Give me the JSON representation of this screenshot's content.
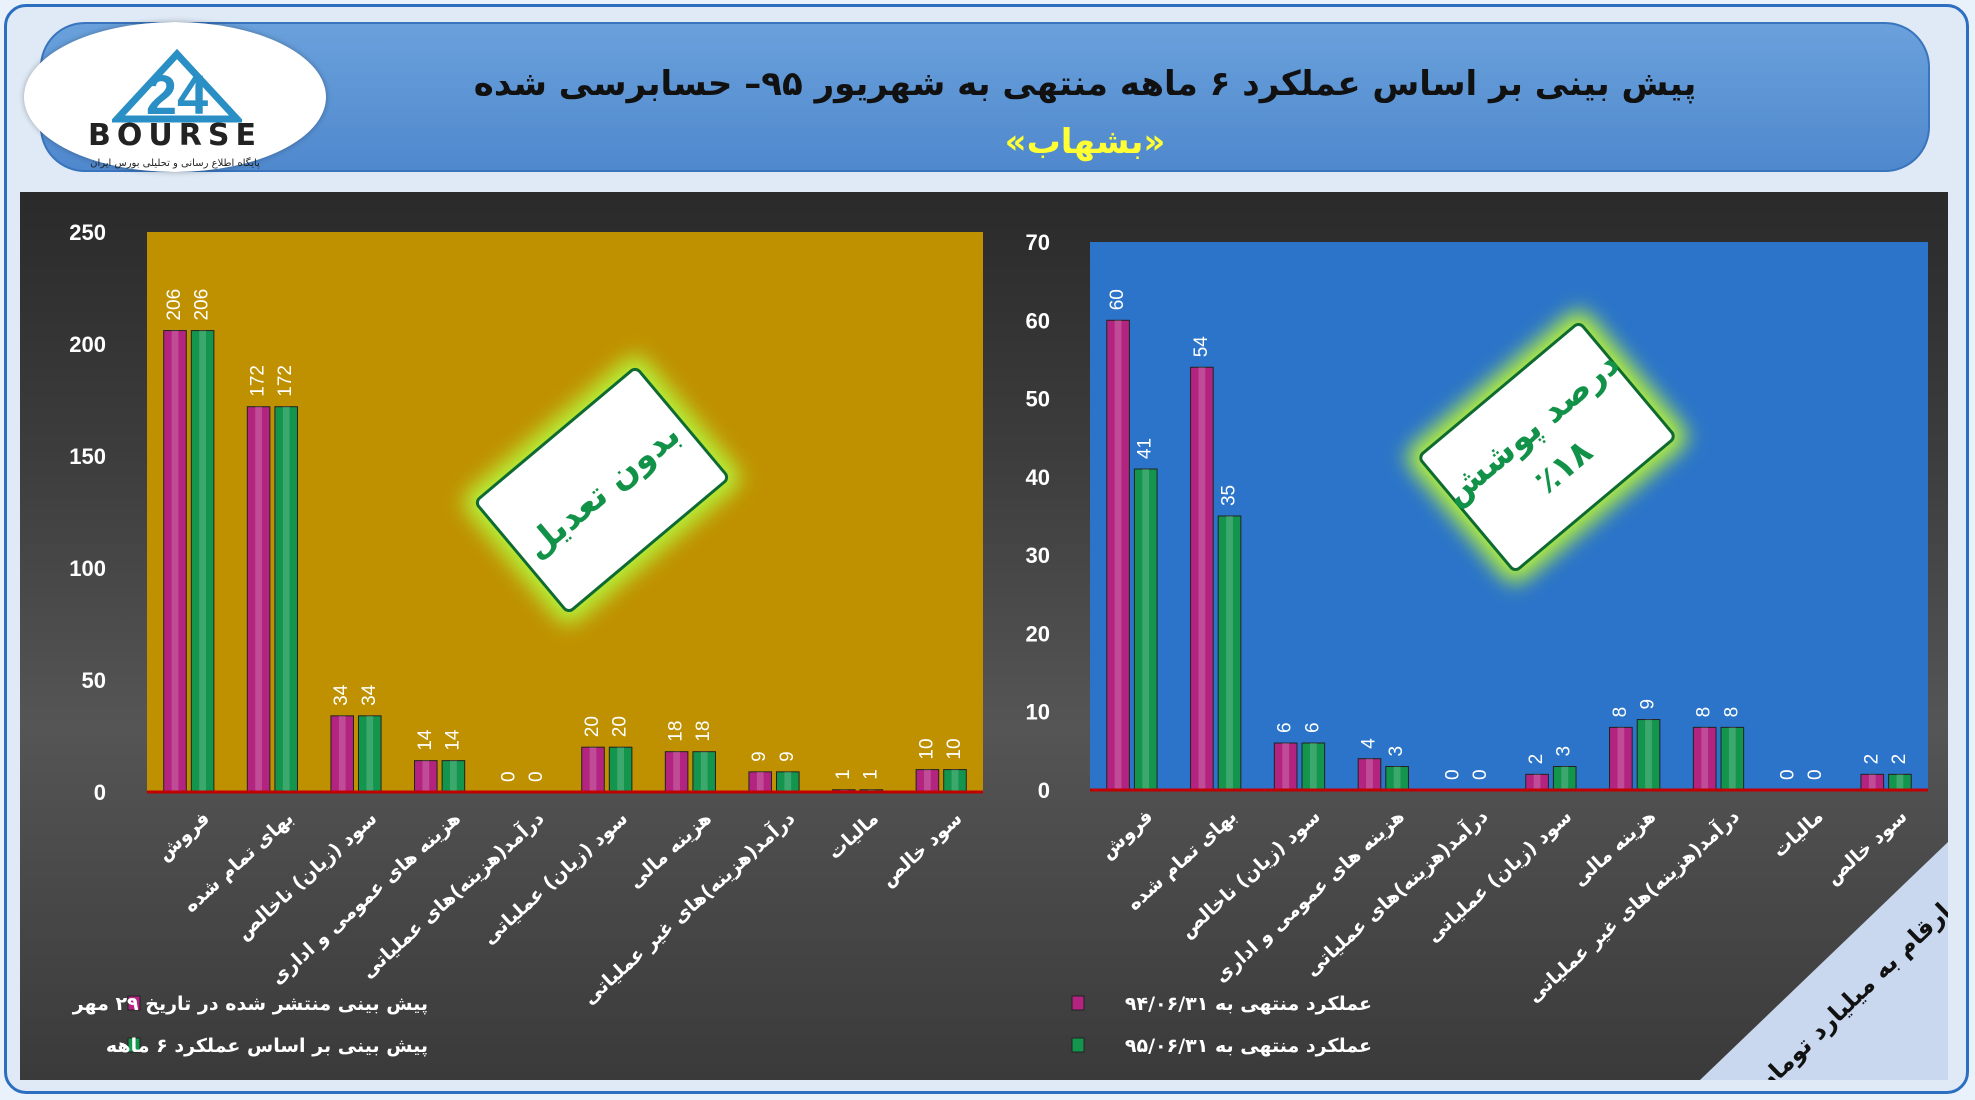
{
  "header": {
    "title": "پیش بینی بر اساس عملکرد ۶ ماهه منتهی به شهریور ۹۵– حسابرسی شده",
    "subtitle": "«بشهاب»"
  },
  "logo": {
    "name": "BOURSE",
    "number": "24",
    "tagline": "پایگاه اطلاع رسانی و تحلیلی بورس ایران"
  },
  "colors": {
    "series1": "#b2247f",
    "series2": "#13954d",
    "left_plot_bg": "#bf9100",
    "right_plot_bg": "#2b74c9",
    "baseline": "#c00000"
  },
  "chart_data": [
    {
      "type": "bar",
      "categories": [
        "فروش",
        "بهای تمام شده",
        "سود (زیان) ناخالص",
        "هزینه های عمومی و اداری",
        "درآمد(هزینه)های عملیاتی",
        "سود (زیان) عملیاتی",
        "هزینه مالی",
        "درآمد(هزینه)های غیر عملیاتی",
        "مالیات",
        "سود خالص"
      ],
      "series": [
        {
          "name": "پیش بینی منتشر شده در تاریخ ۲۹ مهر",
          "values": [
            206,
            172,
            34,
            14,
            0,
            20,
            18,
            9,
            1,
            10
          ]
        },
        {
          "name": "پیش بینی بر اساس عملکرد ۶ ماهه",
          "values": [
            206,
            172,
            34,
            14,
            0,
            20,
            18,
            9,
            1,
            10
          ]
        }
      ],
      "yticks": [
        "0",
        "50",
        "100",
        "150",
        "200",
        "250"
      ],
      "ylim": [
        0,
        250
      ],
      "grid": false,
      "legend_position": "bottom-left",
      "stamp": [
        "بدون تعدیل"
      ]
    },
    {
      "type": "bar",
      "categories": [
        "فروش",
        "بهای تمام شده",
        "سود (زیان) ناخالص",
        "هزینه های عمومی و اداری",
        "درآمد(هزینه)های عملیاتی",
        "سود (زیان) عملیاتی",
        "هزینه مالی",
        "درآمد(هزینه)های غیر عملیاتی",
        "مالیات",
        "سود خالص"
      ],
      "series": [
        {
          "name": "عملکرد منتهی به ۹۴/۰۶/۳۱",
          "values": [
            60,
            54,
            6,
            4,
            0,
            2,
            8,
            8,
            0,
            2
          ]
        },
        {
          "name": "عملکرد منتهی به ۹۵/۰۶/۳۱",
          "values": [
            41,
            35,
            6,
            3,
            0,
            3,
            9,
            8,
            0,
            2
          ]
        }
      ],
      "yticks": [
        "0",
        "10",
        "20",
        "30",
        "40",
        "50",
        "60",
        "70"
      ],
      "ylim": [
        0,
        70
      ],
      "grid": false,
      "legend_position": "bottom-left",
      "stamp": [
        "درصد پوشش",
        "٪۱۸"
      ]
    }
  ],
  "corner_note": "ارقام به میلیارد تومان"
}
